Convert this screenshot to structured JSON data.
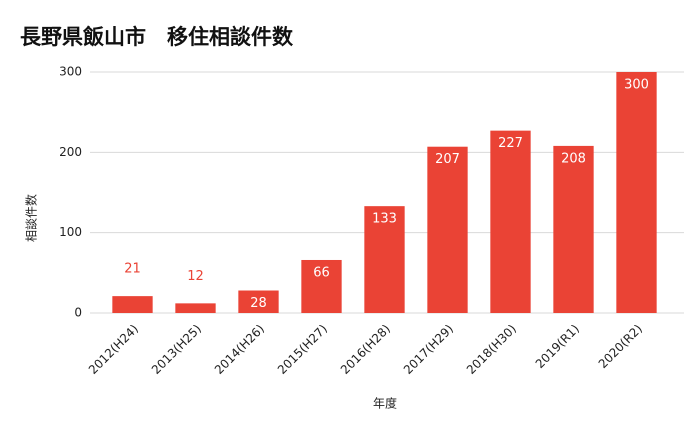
{
  "chart_data": {
    "type": "bar",
    "title": "長野県飯山市　移住相談件数",
    "x_label": "年度",
    "y_label": "相談件数",
    "categories": [
      "2012(H24)",
      "2013(H25)",
      "2014(H26)",
      "2015(H27)",
      "2016(H28)",
      "2017(H29)",
      "2018(H30)",
      "2019(R1)",
      "2020(R2)"
    ],
    "values": [
      21,
      12,
      28,
      66,
      133,
      207,
      227,
      208,
      300
    ],
    "color": "#ea4335",
    "ylim": [
      0,
      300
    ],
    "yticks": [
      0,
      100,
      200,
      300
    ],
    "grid": true
  }
}
